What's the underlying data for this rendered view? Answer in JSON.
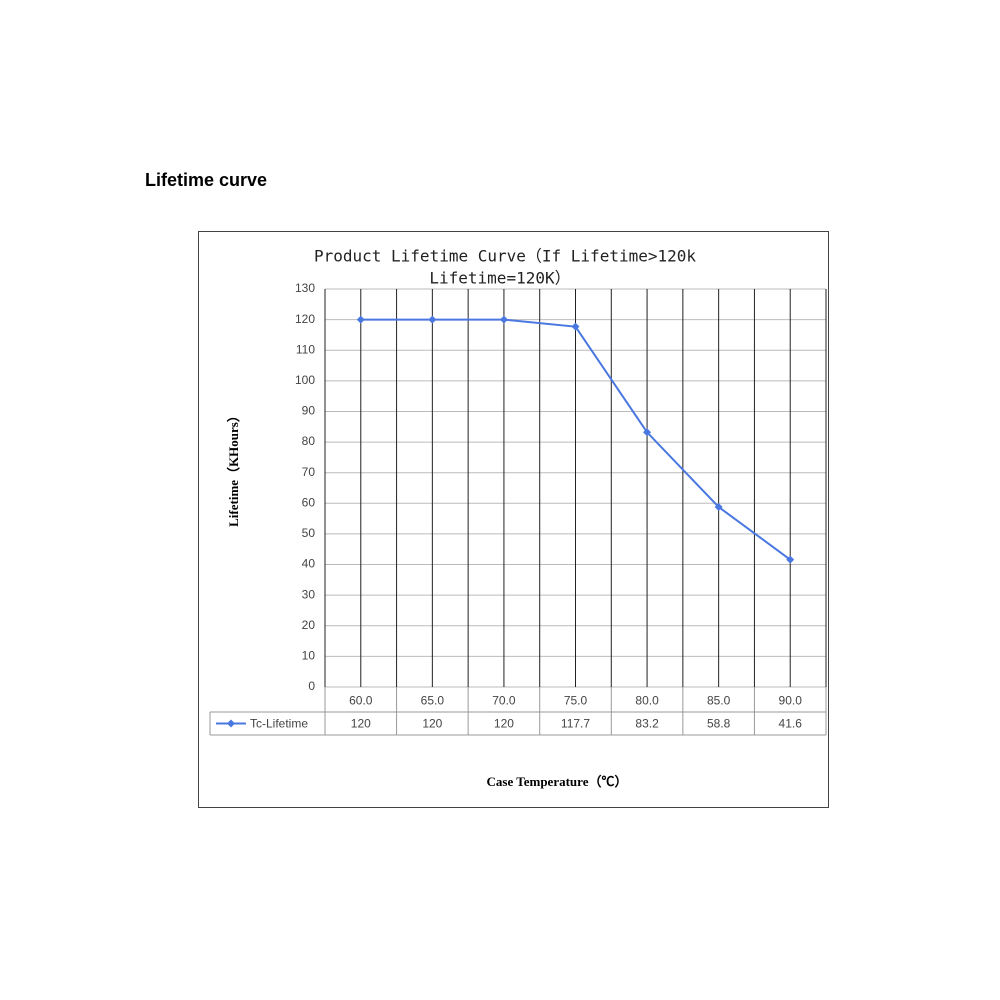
{
  "heading": "Lifetime curve",
  "chart_data": {
    "type": "line",
    "title": [
      "Product Lifetime Curve（If Lifetime>120k",
      "Lifetime=120K）"
    ],
    "y_label": "Lifetime（KHours）",
    "x_label": "Case Temperature（℃）",
    "categories": [
      "60.0",
      "65.0",
      "70.0",
      "75.0",
      "80.0",
      "85.0",
      "90.0"
    ],
    "series": [
      {
        "name": "Tc-Lifetime",
        "color": "#4a78e0",
        "values": [
          120,
          120,
          120,
          117.7,
          83.2,
          58.8,
          41.6
        ]
      }
    ],
    "ylim": [
      0,
      130
    ],
    "yticks": [
      0,
      10,
      20,
      30,
      40,
      50,
      60,
      70,
      80,
      90,
      100,
      110,
      120,
      130
    ],
    "grid": true,
    "data_table": true
  }
}
